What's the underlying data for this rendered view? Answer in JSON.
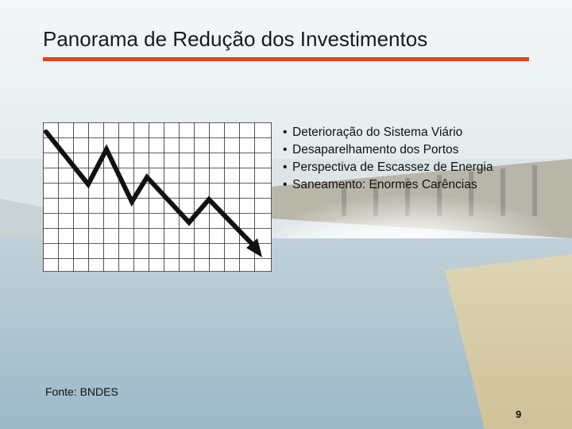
{
  "slide": {
    "title": "Panorama de Redução dos Investimentos",
    "accent_color": "#e4421c",
    "bullets": [
      "Deterioração do Sistema Viário",
      "Desaparelhamento dos Portos",
      "Perspectiva de Escassez de Energia",
      "Saneamento: Enormes Carências"
    ],
    "source": "Fonte: BNDES",
    "page_number": "9"
  },
  "illustration": {
    "icon": "declining-trend-chart-icon",
    "background": "dam-spillway-photo"
  }
}
